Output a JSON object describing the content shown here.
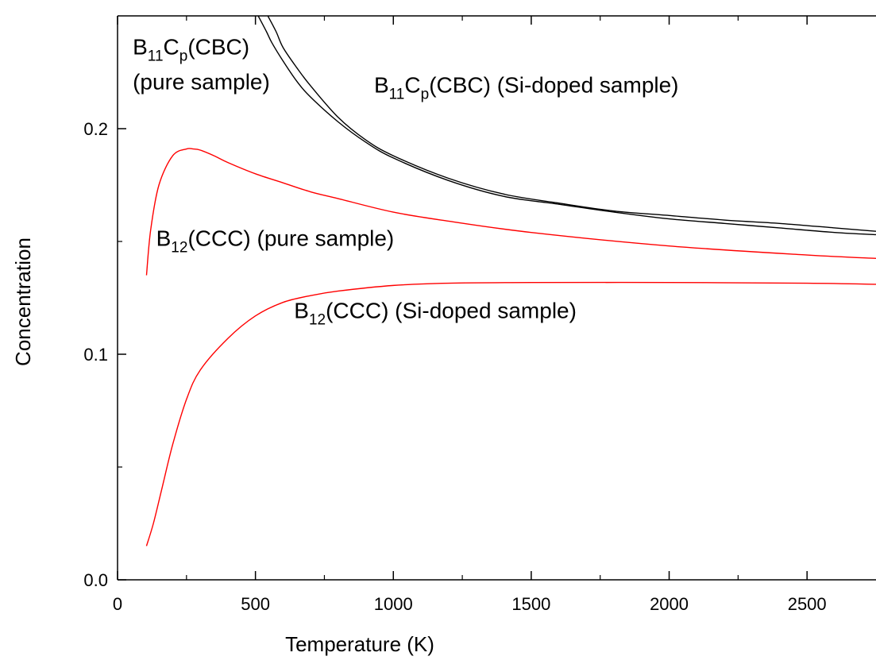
{
  "chart_data": {
    "type": "line",
    "xlabel": "Temperature (K)",
    "ylabel": "Concentration",
    "xlim": [
      0,
      2750
    ],
    "ylim": [
      0,
      0.25
    ],
    "x_ticks": [
      "0",
      "500",
      "1000",
      "1500",
      "2000",
      "2500"
    ],
    "y_ticks": [
      "0.0",
      "0.1",
      "0.2"
    ],
    "x_tick_values": [
      0,
      500,
      1000,
      1500,
      2000,
      2500
    ],
    "y_tick_values": [
      0.0,
      0.1,
      0.2
    ],
    "grid": false,
    "series": [
      {
        "color": "#000000",
        "x": [
          510,
          540,
          560,
          600,
          650,
          700,
          800,
          900,
          1000,
          1200,
          1400,
          1600,
          1800,
          2000,
          2200,
          2400,
          2600,
          2750
        ],
        "y": [
          0.25,
          0.243,
          0.238,
          0.23,
          0.221,
          0.214,
          0.203,
          0.194,
          0.187,
          0.177,
          0.17,
          0.1665,
          0.163,
          0.16,
          0.158,
          0.156,
          0.154,
          0.153
        ]
      },
      {
        "color": "#000000",
        "x": [
          545,
          575,
          600,
          650,
          700,
          800,
          900,
          1000,
          1200,
          1400,
          1600,
          1800,
          2000,
          2200,
          2400,
          2600,
          2750
        ],
        "y": [
          0.25,
          0.243,
          0.236,
          0.227,
          0.219,
          0.205,
          0.195,
          0.188,
          0.178,
          0.171,
          0.167,
          0.1635,
          0.1615,
          0.1595,
          0.158,
          0.156,
          0.1545
        ]
      },
      {
        "color": "#ff0000",
        "x": [
          105,
          120,
          150,
          200,
          250,
          275,
          300,
          350,
          400,
          500,
          600,
          700,
          800,
          1000,
          1200,
          1500,
          2000,
          2500,
          2750
        ],
        "y": [
          0.135,
          0.155,
          0.175,
          0.188,
          0.191,
          0.191,
          0.1905,
          0.188,
          0.185,
          0.18,
          0.176,
          0.172,
          0.169,
          0.163,
          0.159,
          0.154,
          0.148,
          0.144,
          0.1425
        ]
      },
      {
        "color": "#ff0000",
        "x": [
          105,
          130,
          160,
          200,
          250,
          300,
          400,
          500,
          600,
          700,
          800,
          1000,
          1200,
          1500,
          2000,
          2500,
          2750
        ],
        "y": [
          0.015,
          0.025,
          0.04,
          0.06,
          0.08,
          0.093,
          0.107,
          0.117,
          0.123,
          0.126,
          0.128,
          0.1305,
          0.1315,
          0.1318,
          0.1318,
          0.1315,
          0.131
        ]
      }
    ],
    "annotations": [
      {
        "lines": [
          [
            {
              "t": "B"
            },
            {
              "t": "11",
              "sub": true
            },
            {
              "t": "C"
            },
            {
              "t": "p",
              "sub": true
            },
            {
              "t": "(CBC)"
            }
          ],
          [
            {
              "t": "(pure sample)"
            }
          ]
        ],
        "x": 55,
        "y": 0.233
      },
      {
        "lines": [
          [
            {
              "t": "B"
            },
            {
              "t": "11",
              "sub": true
            },
            {
              "t": "C"
            },
            {
              "t": "p",
              "sub": true
            },
            {
              "t": "(CBC) (Si-doped sample)"
            }
          ]
        ],
        "x": 930,
        "y": 0.216
      },
      {
        "lines": [
          [
            {
              "t": "B"
            },
            {
              "t": "12",
              "sub": true
            },
            {
              "t": "(CCC) (pure sample)"
            }
          ]
        ],
        "x": 140,
        "y": 0.148
      },
      {
        "lines": [
          [
            {
              "t": "B"
            },
            {
              "t": "12",
              "sub": true
            },
            {
              "t": "(CCC) (Si-doped sample)"
            }
          ]
        ],
        "x": 640,
        "y": 0.116
      }
    ]
  }
}
